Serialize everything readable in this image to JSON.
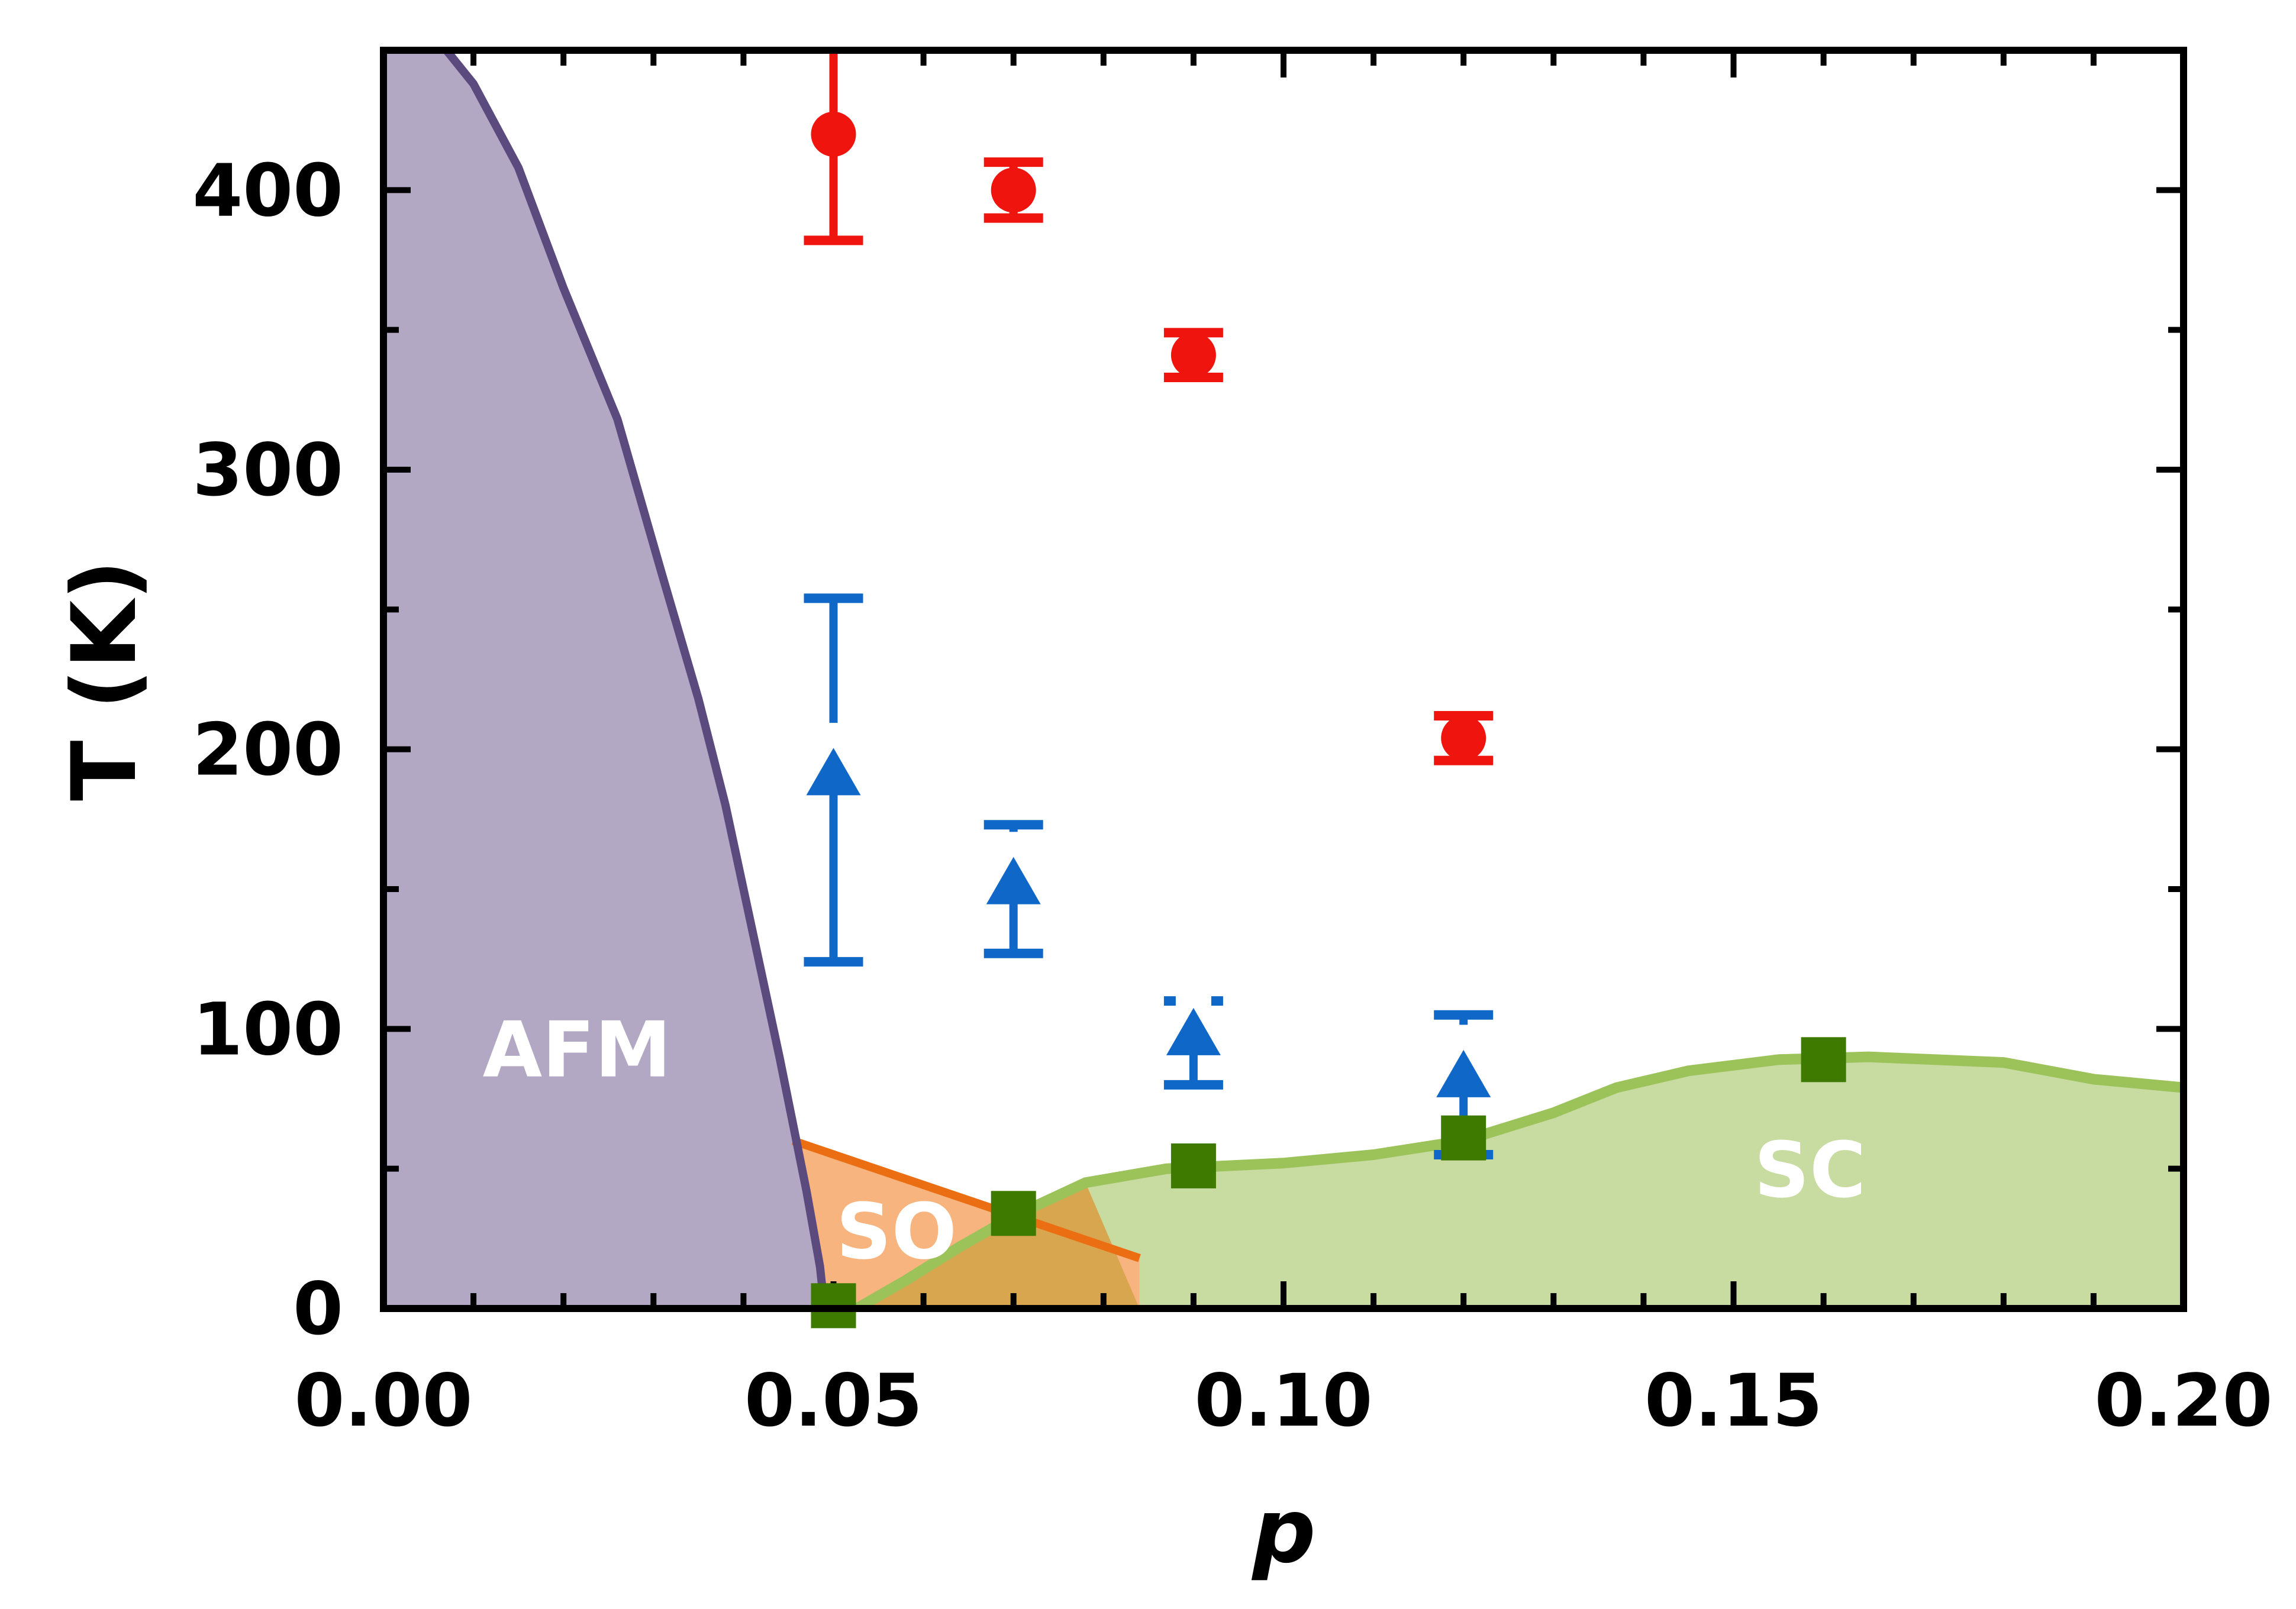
{
  "chart_data": {
    "type": "scatter",
    "xlabel": "p",
    "ylabel": "T (K)",
    "xlim": [
      0.0,
      0.2
    ],
    "ylim": [
      0,
      450
    ],
    "x_ticks": [
      "0.00",
      "0.05",
      "0.10",
      "0.15",
      "0.20"
    ],
    "x_tick_values": [
      0.0,
      0.05,
      0.1,
      0.15,
      0.2
    ],
    "x_minor_step": 0.01,
    "y_ticks": [
      "0",
      "100",
      "200",
      "300",
      "400"
    ],
    "y_tick_values": [
      0,
      100,
      200,
      300,
      400
    ],
    "y_minor_step": 50,
    "grid": false,
    "colors": {
      "red": "#f0140f",
      "blue": "#0f68c8",
      "green": "#3f7a00",
      "afm_fill": "#b3a8c4",
      "afm_line": "#5a4a7e",
      "so_fill": "#f7b47e",
      "so_line": "#ec6e12",
      "overlap_fill": "#d9a650",
      "sc_fill": "#c8dba0",
      "sc_line": "#9cc25a"
    },
    "regions": [
      {
        "label": "AFM",
        "label_at": [
          0.0215,
          83
        ],
        "boundary": [
          [
            0.0,
            470
          ],
          [
            0.005,
            458
          ],
          [
            0.01,
            438
          ],
          [
            0.015,
            408
          ],
          [
            0.02,
            365
          ],
          [
            0.026,
            318
          ],
          [
            0.031,
            262
          ],
          [
            0.035,
            218
          ],
          [
            0.038,
            180
          ],
          [
            0.041,
            135
          ],
          [
            0.044,
            90
          ],
          [
            0.047,
            42
          ],
          [
            0.0485,
            15
          ],
          [
            0.049,
            0
          ]
        ]
      },
      {
        "label": "SO",
        "label_at": [
          0.057,
          18
        ],
        "boundary": [
          [
            0.0455,
            60
          ],
          [
            0.084,
            18
          ]
        ]
      },
      {
        "label": "SC",
        "label_at": [
          0.1585,
          40
        ],
        "boundary": [
          [
            0.0526,
            0
          ],
          [
            0.058,
            10
          ],
          [
            0.064,
            22
          ],
          [
            0.07,
            33
          ],
          [
            0.078,
            45
          ],
          [
            0.087,
            50
          ],
          [
            0.1,
            52
          ],
          [
            0.11,
            55
          ],
          [
            0.12,
            60
          ],
          [
            0.13,
            70
          ],
          [
            0.137,
            79
          ],
          [
            0.145,
            85
          ],
          [
            0.155,
            89
          ],
          [
            0.165,
            90
          ],
          [
            0.18,
            88
          ],
          [
            0.19,
            82
          ],
          [
            0.2,
            79
          ]
        ]
      }
    ],
    "series": [
      {
        "marker": "circle",
        "color": "#f0140f",
        "points": [
          {
            "x": 0.05,
            "y": 420,
            "ylow": 382,
            "yhigh": 450
          },
          {
            "x": 0.07,
            "y": 400,
            "ylow": 390,
            "yhigh": 410
          },
          {
            "x": 0.09,
            "y": 341,
            "ylow": 333,
            "yhigh": 349
          },
          {
            "x": 0.12,
            "y": 204,
            "ylow": 196,
            "yhigh": 212
          }
        ]
      },
      {
        "marker": "triangle",
        "color": "#0f68c8",
        "points": [
          {
            "x": 0.05,
            "y": 190,
            "ylow": 124,
            "yhigh": 254
          },
          {
            "x": 0.07,
            "y": 151,
            "ylow": 127,
            "yhigh": 173
          },
          {
            "x": 0.09,
            "y": 97,
            "ylow": 80,
            "yhigh": 110
          },
          {
            "x": 0.12,
            "y": 82,
            "ylow": 55,
            "yhigh": 105
          }
        ]
      },
      {
        "marker": "square",
        "color": "#3f7a00",
        "points": [
          {
            "x": 0.05,
            "y": 1
          },
          {
            "x": 0.07,
            "y": 34
          },
          {
            "x": 0.09,
            "y": 51
          },
          {
            "x": 0.12,
            "y": 61
          },
          {
            "x": 0.16,
            "y": 89
          }
        ]
      }
    ]
  }
}
